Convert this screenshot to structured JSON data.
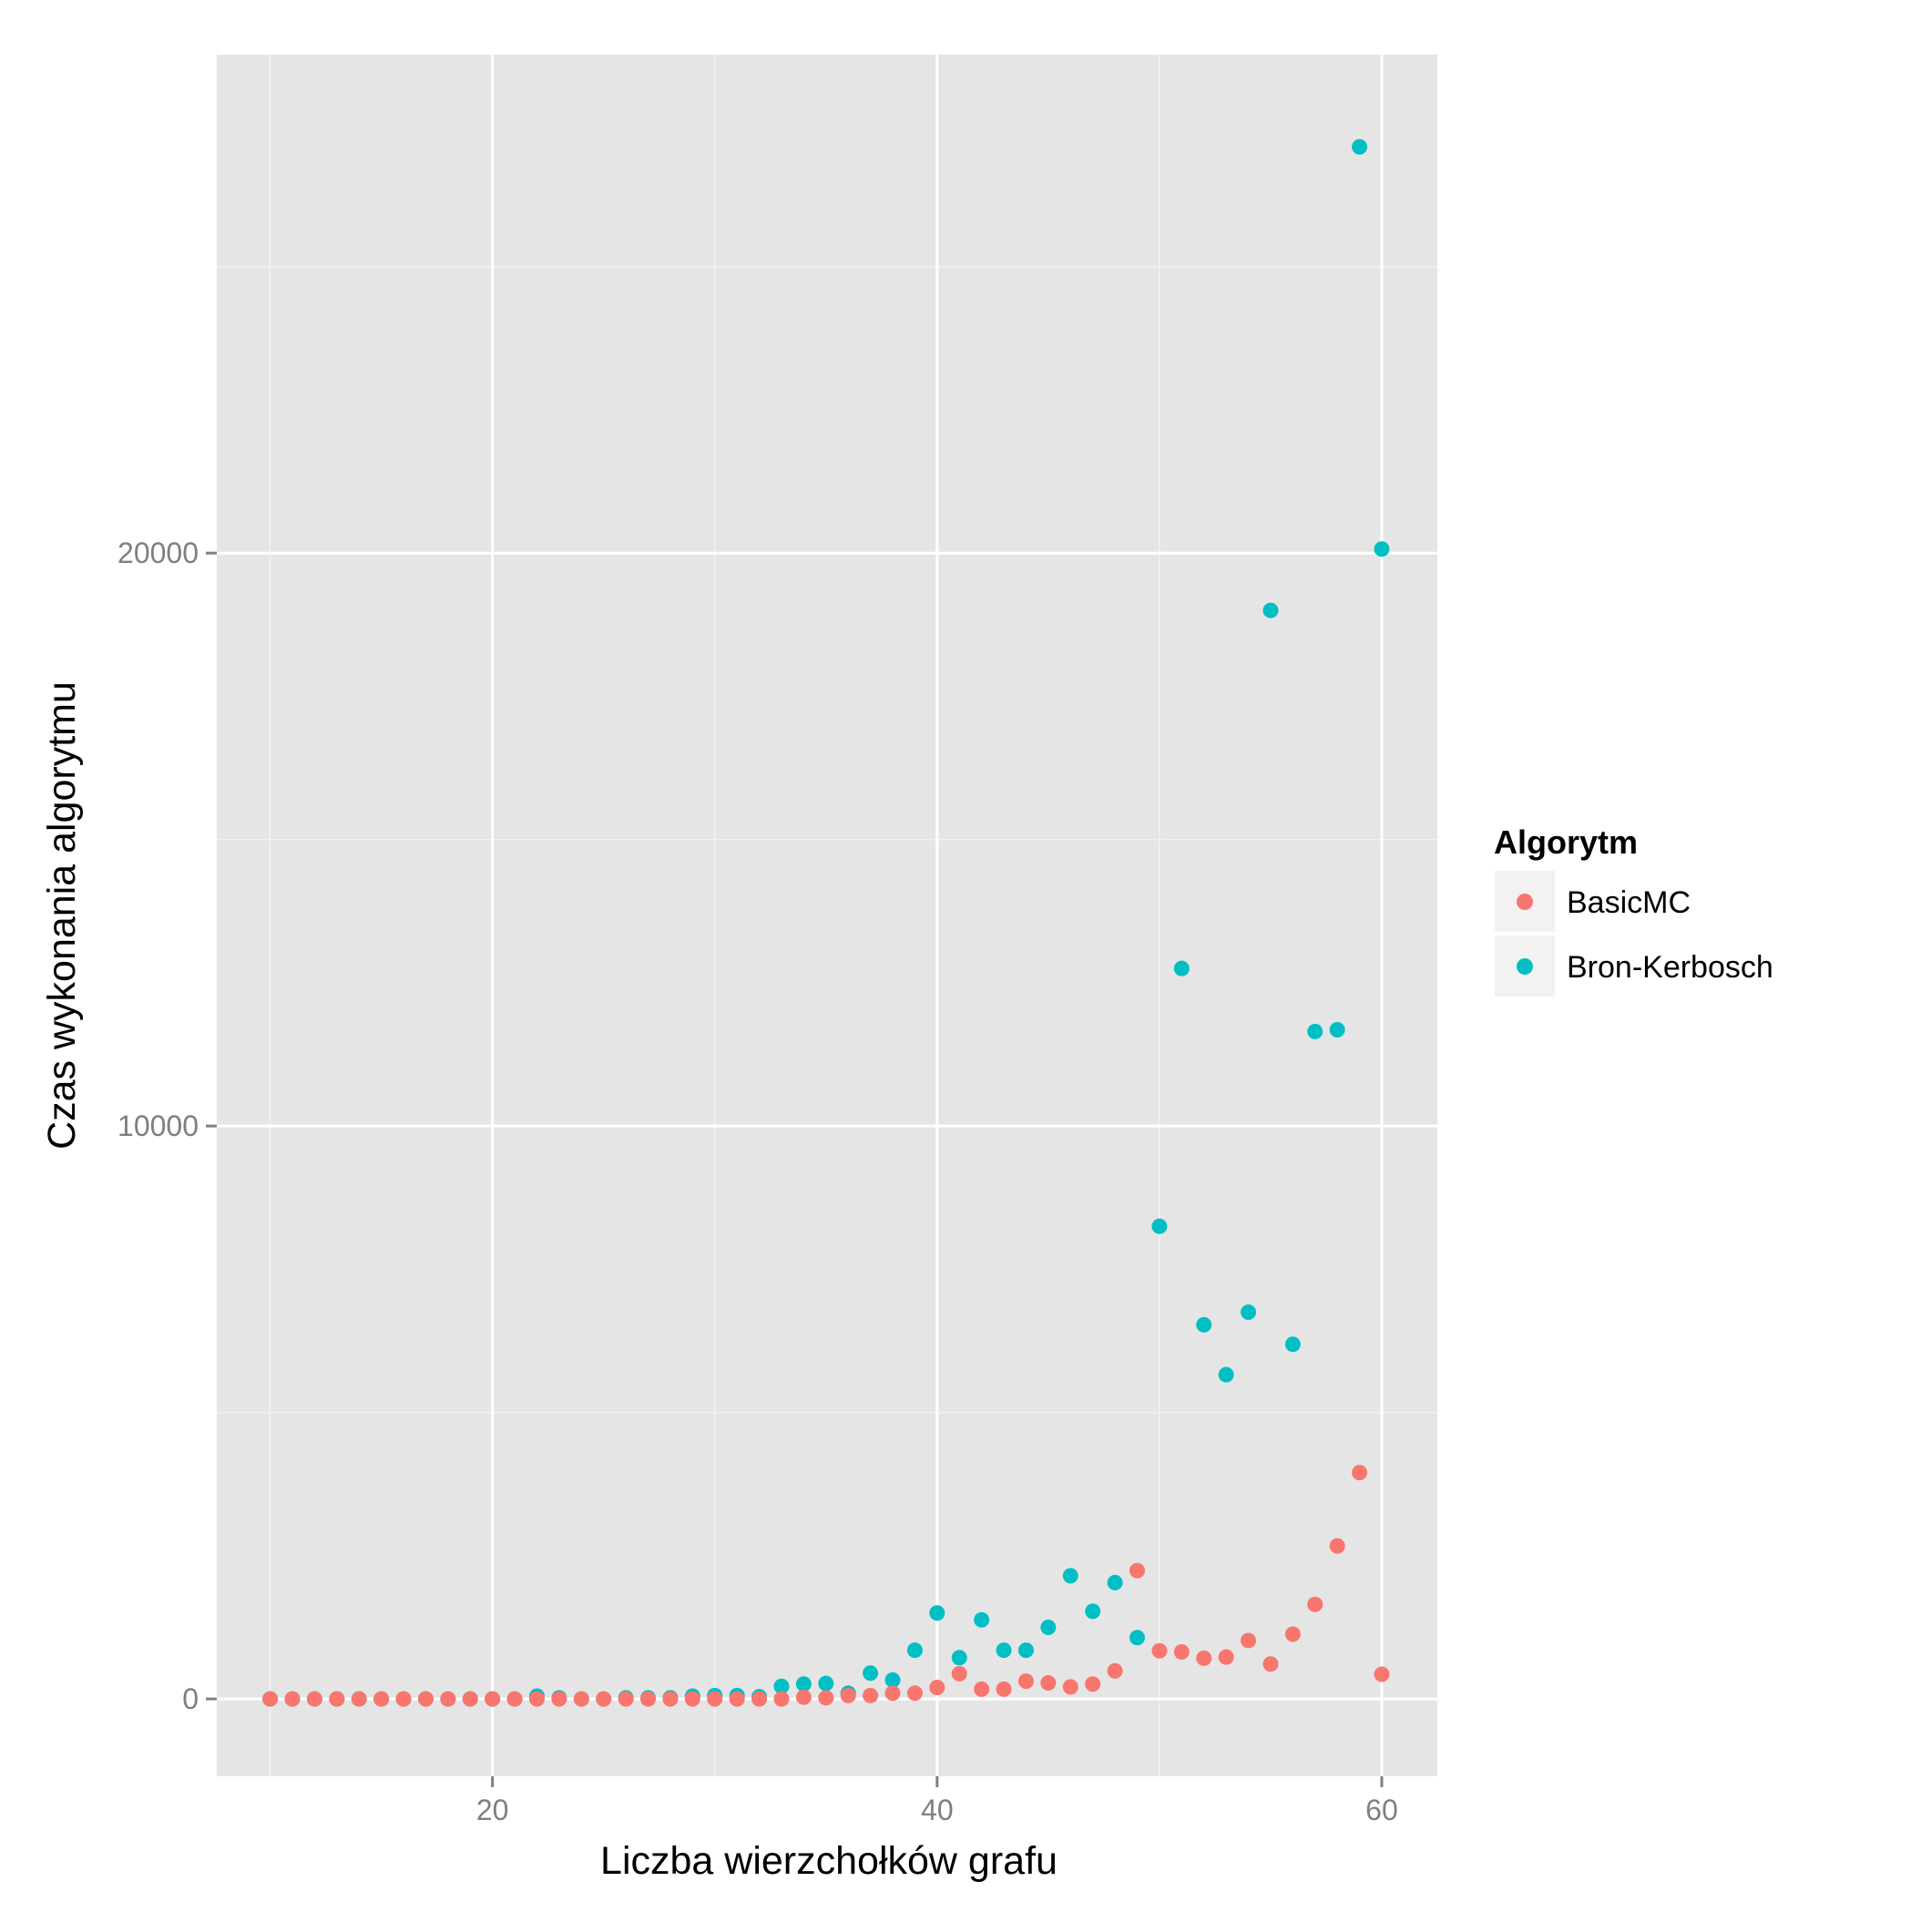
{
  "chart_data": {
    "type": "scatter",
    "xlabel": "Liczba wierzchołków grafu",
    "ylabel": "Czas wykonania algorytmu",
    "xlim": [
      7.6,
      62.5
    ],
    "ylim": [
      -1350,
      28700
    ],
    "x_ticks": [
      20,
      40,
      60
    ],
    "x_tick_labels": [
      "20",
      "40",
      "60"
    ],
    "y_ticks": [
      0,
      10000,
      20000
    ],
    "y_tick_labels": [
      "0",
      "10000",
      "20000"
    ],
    "grid": true,
    "panel_background": "#e5e5e5",
    "grid_color": "#ffffff",
    "legend": {
      "title": "Algorytm",
      "position": "right"
    },
    "series": [
      {
        "name": "Bron-Kerbosch",
        "color": "#00bfc4",
        "x": [
          10,
          11,
          12,
          13,
          14,
          15,
          16,
          17,
          18,
          19,
          20,
          21,
          22,
          23,
          24,
          25,
          26,
          27,
          28,
          29,
          30,
          31,
          32,
          33,
          34,
          35,
          36,
          37,
          38,
          39,
          40,
          41,
          42,
          43,
          44,
          45,
          46,
          47,
          48,
          49,
          50,
          51,
          52,
          53,
          54,
          55,
          56,
          57,
          58,
          59,
          60
        ],
        "y": [
          0,
          0,
          0,
          0,
          0,
          0,
          0,
          0,
          0,
          0,
          0,
          0,
          50,
          20,
          0,
          0,
          20,
          20,
          20,
          50,
          60,
          60,
          40,
          220,
          260,
          270,
          100,
          450,
          330,
          850,
          1500,
          720,
          1380,
          850,
          850,
          1250,
          2150,
          1530,
          2030,
          1070,
          8250,
          12750,
          6530,
          5660,
          6750,
          19000,
          6190,
          11650,
          11680,
          27090,
          20070
        ]
      },
      {
        "name": "BasicMC",
        "color": "#f8766d",
        "x": [
          10,
          11,
          12,
          13,
          14,
          15,
          16,
          17,
          18,
          19,
          20,
          21,
          22,
          23,
          24,
          25,
          26,
          27,
          28,
          29,
          30,
          31,
          32,
          33,
          34,
          35,
          36,
          37,
          38,
          39,
          40,
          41,
          42,
          43,
          44,
          45,
          46,
          47,
          48,
          49,
          50,
          51,
          52,
          53,
          54,
          55,
          56,
          57,
          58,
          59,
          60
        ],
        "y": [
          0,
          0,
          0,
          0,
          0,
          0,
          0,
          0,
          0,
          0,
          0,
          0,
          0,
          0,
          0,
          0,
          0,
          0,
          0,
          0,
          0,
          0,
          0,
          0,
          30,
          20,
          60,
          60,
          100,
          100,
          200,
          440,
          170,
          170,
          310,
          280,
          210,
          260,
          490,
          2240,
          840,
          820,
          710,
          730,
          1020,
          610,
          1130,
          1650,
          2670,
          3950,
          430
        ]
      }
    ]
  }
}
